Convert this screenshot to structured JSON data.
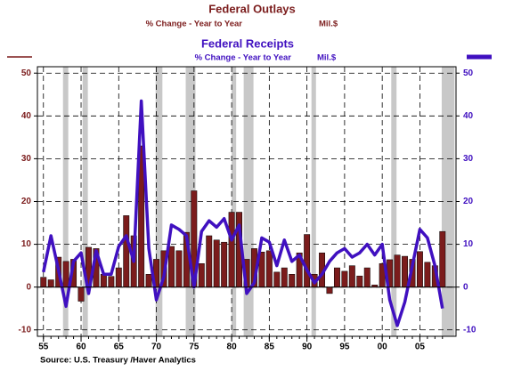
{
  "chart_data": {
    "type": "bar",
    "source": "Source:  U.S. Treasury /Haver Analytics",
    "x": [
      1955,
      1956,
      1957,
      1958,
      1959,
      1960,
      1961,
      1962,
      1963,
      1964,
      1965,
      1966,
      1967,
      1968,
      1969,
      1970,
      1971,
      1972,
      1973,
      1974,
      1975,
      1976,
      1977,
      1978,
      1979,
      1980,
      1981,
      1982,
      1983,
      1984,
      1985,
      1986,
      1987,
      1988,
      1989,
      1990,
      1991,
      1992,
      1993,
      1994,
      1995,
      1996,
      1997,
      1998,
      1999,
      2000,
      2001,
      2002,
      2003,
      2004,
      2005,
      2006,
      2007,
      2008
    ],
    "series": [
      {
        "name": "Federal Outlays",
        "subtitle": "% Change - Year to Year",
        "units": "Mil.$",
        "type": "bar",
        "color": "#7b1c1c",
        "values": [
          2.3,
          1.7,
          7,
          6,
          6.5,
          -3.3,
          9.3,
          9,
          3,
          2.5,
          4.5,
          16.7,
          12,
          33,
          3,
          6.5,
          8.5,
          9.5,
          8.5,
          12.8,
          22.5,
          5.5,
          12,
          11,
          10.5,
          17.5,
          17.5,
          6.5,
          9,
          8.2,
          8.5,
          3.5,
          4.5,
          3,
          8,
          12.3,
          3,
          8,
          -1.5,
          4.5,
          3.7,
          5,
          2.6,
          4.5,
          0.5,
          5.5,
          6.4,
          7.5,
          7.2,
          6.5,
          8.3,
          5.8,
          5,
          13
        ]
      },
      {
        "name": "Federal Receipts",
        "subtitle": "% Change - Year to Year",
        "units": "Mil.$",
        "type": "line",
        "color": "#4010c0",
        "axis": "y2",
        "values": [
          3.5,
          12,
          4,
          -4.5,
          6,
          8,
          -1.5,
          8.5,
          3,
          3,
          9.5,
          12,
          6,
          43.5,
          9,
          -3,
          2.5,
          14.5,
          13.5,
          12,
          0,
          13,
          15.5,
          14,
          16,
          11,
          14.5,
          -1.5,
          1,
          11.5,
          10.5,
          5,
          11,
          6,
          7.5,
          4,
          1,
          3,
          6,
          8,
          9,
          7,
          8,
          10,
          7.5,
          10,
          -3,
          -9,
          -3.5,
          5,
          13.5,
          11.5,
          5,
          -5
        ]
      }
    ],
    "recessions": [
      [
        1957.6,
        1958.3
      ],
      [
        1960.2,
        1960.9
      ],
      [
        1969.9,
        1970.8
      ],
      [
        1973.9,
        1975.2
      ],
      [
        1980.0,
        1980.6
      ],
      [
        1981.6,
        1982.9
      ],
      [
        1990.6,
        1991.2
      ],
      [
        2001.2,
        2001.9
      ],
      [
        2007.9,
        2009.6
      ]
    ],
    "xlim": [
      1954.2,
      2009.8
    ],
    "xticks": [
      {
        "value": 1955,
        "label": "55"
      },
      {
        "value": 1960,
        "label": "60"
      },
      {
        "value": 1965,
        "label": "65"
      },
      {
        "value": 1970,
        "label": "70"
      },
      {
        "value": 1975,
        "label": "75"
      },
      {
        "value": 1980,
        "label": "80"
      },
      {
        "value": 1985,
        "label": "85"
      },
      {
        "value": 1990,
        "label": "90"
      },
      {
        "value": 1995,
        "label": "95"
      },
      {
        "value": 2000,
        "label": "00"
      },
      {
        "value": 2005,
        "label": "05"
      }
    ],
    "ylim": [
      -11.5,
      51.5
    ],
    "yticks": [
      -10,
      0,
      10,
      20,
      30,
      40,
      50
    ],
    "y2lim": [
      -11.5,
      51.5
    ],
    "y2ticks": [
      -10,
      0,
      10,
      20,
      30,
      40,
      50
    ],
    "grid": true
  }
}
